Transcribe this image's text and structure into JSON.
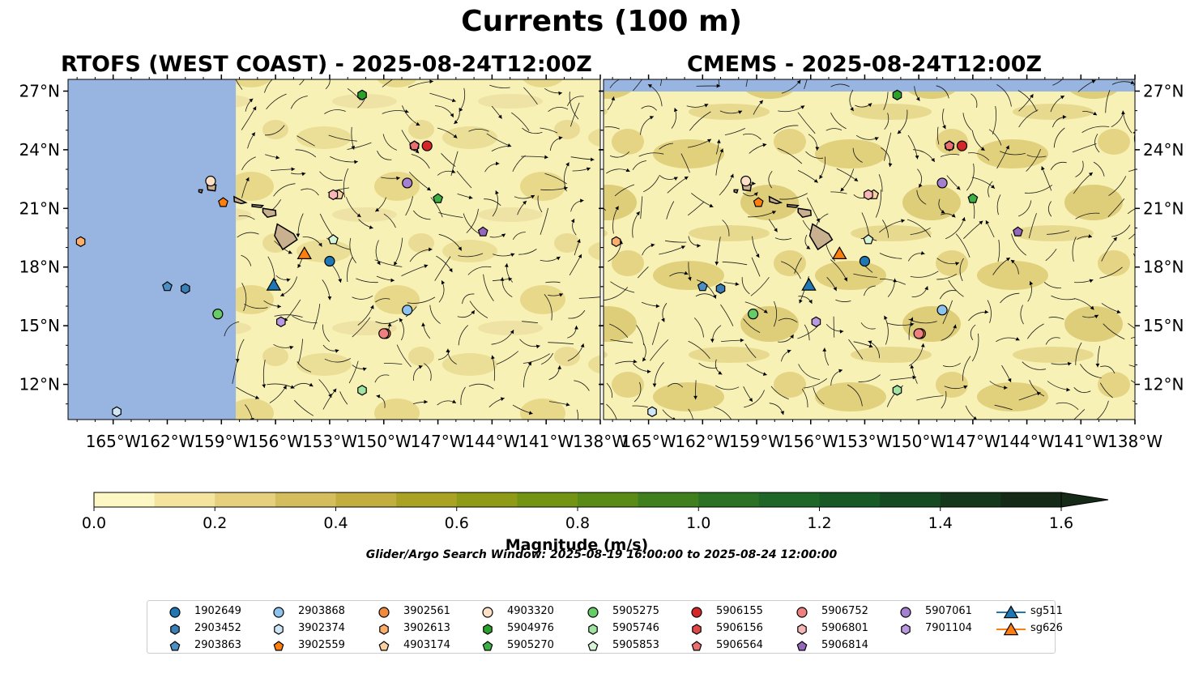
{
  "title": "Currents (100 m)",
  "panels": [
    {
      "title": "RTOFS (WEST COAST) - 2025-08-24T12:00Z"
    },
    {
      "title": "CMEMS - 2025-08-24T12:00Z"
    }
  ],
  "search_window": "Glider/Argo Search Window: 2025-08-19 16:00:00 to 2025-08-24 12:00:00",
  "colors": {
    "ocean_masked": "#97b5e0",
    "field_low": "#f7f1b5",
    "field_mid": "#dccd7a",
    "land": "#c9b08e"
  },
  "chart_data": {
    "type": "map",
    "title": "Currents (100 m)",
    "lon_ticks": [
      "165°W",
      "162°W",
      "159°W",
      "156°W",
      "153°W",
      "150°W",
      "147°W",
      "144°W",
      "141°W",
      "138°W"
    ],
    "lon_tick_values": [
      -165,
      -162,
      -159,
      -156,
      -153,
      -150,
      -147,
      -144,
      -141,
      -138
    ],
    "lat_ticks": [
      "27°N",
      "24°N",
      "21°N",
      "18°N",
      "15°N",
      "12°N"
    ],
    "lat_tick_values": [
      27,
      24,
      21,
      18,
      15,
      12
    ],
    "lon_range": [
      -167.5,
      -138
    ],
    "lat_range": [
      10.2,
      27.6
    ],
    "rtofs_data_west_edge": -158.2,
    "colorbar": {
      "label": "Magnitude (m/s)",
      "ticks": [
        "0.0",
        "0.2",
        "0.4",
        "0.6",
        "0.8",
        "1.0",
        "1.2",
        "1.4",
        "1.6"
      ],
      "range": [
        0,
        1.6
      ],
      "extend": "max",
      "colors": [
        "#fdf7c3",
        "#f4e49e",
        "#e6d07e",
        "#d4bd5c",
        "#c2ad3f",
        "#a9a223",
        "#8f9a17",
        "#739413",
        "#5a8b17",
        "#3f7f1d",
        "#2b7225",
        "#1f6629",
        "#185a26",
        "#154a22",
        "#15381d",
        "#152a17"
      ]
    },
    "series": [
      {
        "name": "1902649",
        "color": "#1f77b4",
        "marker": "circle",
        "lon": -153.0,
        "lat": 18.3
      },
      {
        "name": "2903452",
        "color": "#3a7fb5",
        "marker": "hexagon",
        "lon": -161.0,
        "lat": 16.9
      },
      {
        "name": "2903863",
        "color": "#4a90c4",
        "marker": "pentagon",
        "lon": -162.0,
        "lat": 17.0
      },
      {
        "name": "2903868",
        "color": "#8ec3ee",
        "marker": "circle",
        "lon": -148.7,
        "lat": 15.8
      },
      {
        "name": "3902374",
        "color": "#cfe6f7",
        "marker": "hexagon",
        "lon": -164.8,
        "lat": 10.6
      },
      {
        "name": "3902559",
        "color": "#ff7f0e",
        "marker": "pentagon",
        "lon": -158.9,
        "lat": 21.3
      },
      {
        "name": "3902561",
        "color": "#f08a3c",
        "marker": "circle",
        "lon": -149.9,
        "lat": 14.6
      },
      {
        "name": "3902613",
        "color": "#fdae6b",
        "marker": "hexagon",
        "lon": -166.8,
        "lat": 19.3
      },
      {
        "name": "4903174",
        "color": "#fdd0a2",
        "marker": "pentagon",
        "lon": -152.5,
        "lat": 21.7
      },
      {
        "name": "4903320",
        "color": "#fde0c5",
        "marker": "circle",
        "lon": -159.6,
        "lat": 22.4
      },
      {
        "name": "5904976",
        "color": "#2ca02c",
        "marker": "hexagon",
        "lon": -151.2,
        "lat": 26.8
      },
      {
        "name": "5905270",
        "color": "#3cb043",
        "marker": "pentagon",
        "lon": -147.0,
        "lat": 21.5
      },
      {
        "name": "5905275",
        "color": "#66cc66",
        "marker": "circle",
        "lon": -159.2,
        "lat": 15.6
      },
      {
        "name": "5905746",
        "color": "#a1e3a1",
        "marker": "hexagon",
        "lon": -151.2,
        "lat": 11.7
      },
      {
        "name": "5905853",
        "color": "#d6f5d6",
        "marker": "pentagon",
        "lon": -152.8,
        "lat": 19.4
      },
      {
        "name": "5906155",
        "color": "#d62728",
        "marker": "circle",
        "lon": -147.6,
        "lat": 24.2
      },
      {
        "name": "5906156",
        "color": "#e04848",
        "marker": "hexagon",
        "lon": -148.3,
        "lat": 24.2
      },
      {
        "name": "5906564",
        "color": "#e87070",
        "marker": "pentagon",
        "lon": -148.3,
        "lat": 24.2
      },
      {
        "name": "5906752",
        "color": "#f08080",
        "marker": "circle",
        "lon": -150.0,
        "lat": 14.6
      },
      {
        "name": "5906801",
        "color": "#f7b6b6",
        "marker": "hexagon",
        "lon": -152.8,
        "lat": 21.7
      },
      {
        "name": "5906814",
        "color": "#9467bd",
        "marker": "pentagon",
        "lon": -144.5,
        "lat": 19.8
      },
      {
        "name": "5907061",
        "color": "#a57fd0",
        "marker": "circle",
        "lon": -148.7,
        "lat": 22.3
      },
      {
        "name": "7901104",
        "color": "#b99ae0",
        "marker": "hexagon",
        "lon": -155.7,
        "lat": 15.2
      },
      {
        "name": "sg511",
        "color": "#1f77b4",
        "marker": "triangle",
        "lon": -156.1,
        "lat": 17.1
      },
      {
        "name": "sg626",
        "color": "#ff7f0e",
        "marker": "triangle",
        "lon": -154.4,
        "lat": 18.7
      }
    ]
  }
}
